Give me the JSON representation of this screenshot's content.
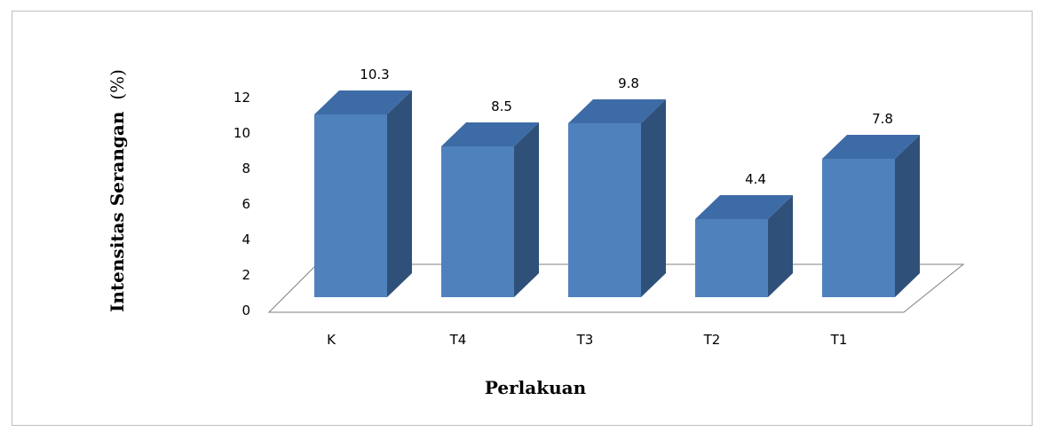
{
  "chart_data": {
    "type": "bar",
    "categories": [
      "K",
      "T4",
      "T3",
      "T2",
      "T1"
    ],
    "values": [
      10.3,
      8.5,
      9.8,
      4.4,
      7.8
    ],
    "data_labels": [
      "10.3",
      "8.5",
      "9.8",
      "4.4",
      "7.8"
    ],
    "xlabel": "Perlakuan",
    "ylabel_main": "Intensitas Serangan",
    "ylabel_unit": "(%)",
    "ylim": [
      0,
      12
    ],
    "yticks": [
      "0",
      "2",
      "4",
      "6",
      "8",
      "10",
      "12"
    ],
    "grid": false,
    "legend": "none",
    "style": "3d-column",
    "colors": {
      "front": "#4f81bd",
      "top": "#3d6ba6",
      "side": "#2f5079",
      "floor": "#7f7f7f"
    }
  }
}
